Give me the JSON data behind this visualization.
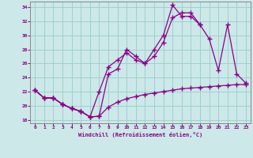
{
  "xlabel": "Windchill (Refroidissement éolien,°C)",
  "bg_color": "#cce8e8",
  "line_color": "#880088",
  "grid_color": "#99cccc",
  "xlim": [
    -0.5,
    23.5
  ],
  "ylim": [
    17.5,
    34.8
  ],
  "yticks": [
    18,
    20,
    22,
    24,
    26,
    28,
    30,
    32,
    34
  ],
  "xticks": [
    0,
    1,
    2,
    3,
    4,
    5,
    6,
    7,
    8,
    9,
    10,
    11,
    12,
    13,
    14,
    15,
    16,
    17,
    18,
    19,
    20,
    21,
    22,
    23
  ],
  "line1_x": [
    0,
    1,
    2,
    3,
    4,
    5,
    6,
    7,
    8,
    9,
    10,
    11,
    12,
    13,
    14,
    15,
    16,
    17,
    18,
    19,
    20,
    21,
    22,
    23
  ],
  "line1_y": [
    22.2,
    21.1,
    21.1,
    20.2,
    19.6,
    19.2,
    18.4,
    18.5,
    19.8,
    20.5,
    21.0,
    21.3,
    21.6,
    21.8,
    22.0,
    22.2,
    22.4,
    22.5,
    22.6,
    22.7,
    22.8,
    22.9,
    23.0,
    23.0
  ],
  "line2_x": [
    0,
    1,
    2,
    3,
    4,
    5,
    6,
    7,
    8,
    9,
    10,
    11,
    12,
    13,
    14,
    15,
    16,
    17,
    18,
    19,
    20,
    21,
    22,
    23
  ],
  "line2_y": [
    22.2,
    21.1,
    21.1,
    20.2,
    19.6,
    19.2,
    18.4,
    18.5,
    24.5,
    25.2,
    28.0,
    27.0,
    26.0,
    28.0,
    30.0,
    34.3,
    32.7,
    32.7,
    31.5,
    null,
    null,
    null,
    null,
    null
  ],
  "line3_x": [
    0,
    1,
    2,
    3,
    4,
    5,
    6,
    7,
    8,
    9,
    10,
    11,
    12,
    13,
    14,
    15,
    16,
    17,
    18,
    19,
    20,
    21,
    22,
    23
  ],
  "line3_y": [
    22.2,
    21.1,
    21.1,
    20.2,
    19.6,
    19.2,
    18.4,
    22.0,
    25.5,
    26.5,
    27.5,
    26.5,
    26.0,
    27.0,
    29.0,
    32.5,
    33.2,
    33.2,
    31.5,
    29.5,
    25.0,
    31.5,
    24.5,
    23.2
  ]
}
